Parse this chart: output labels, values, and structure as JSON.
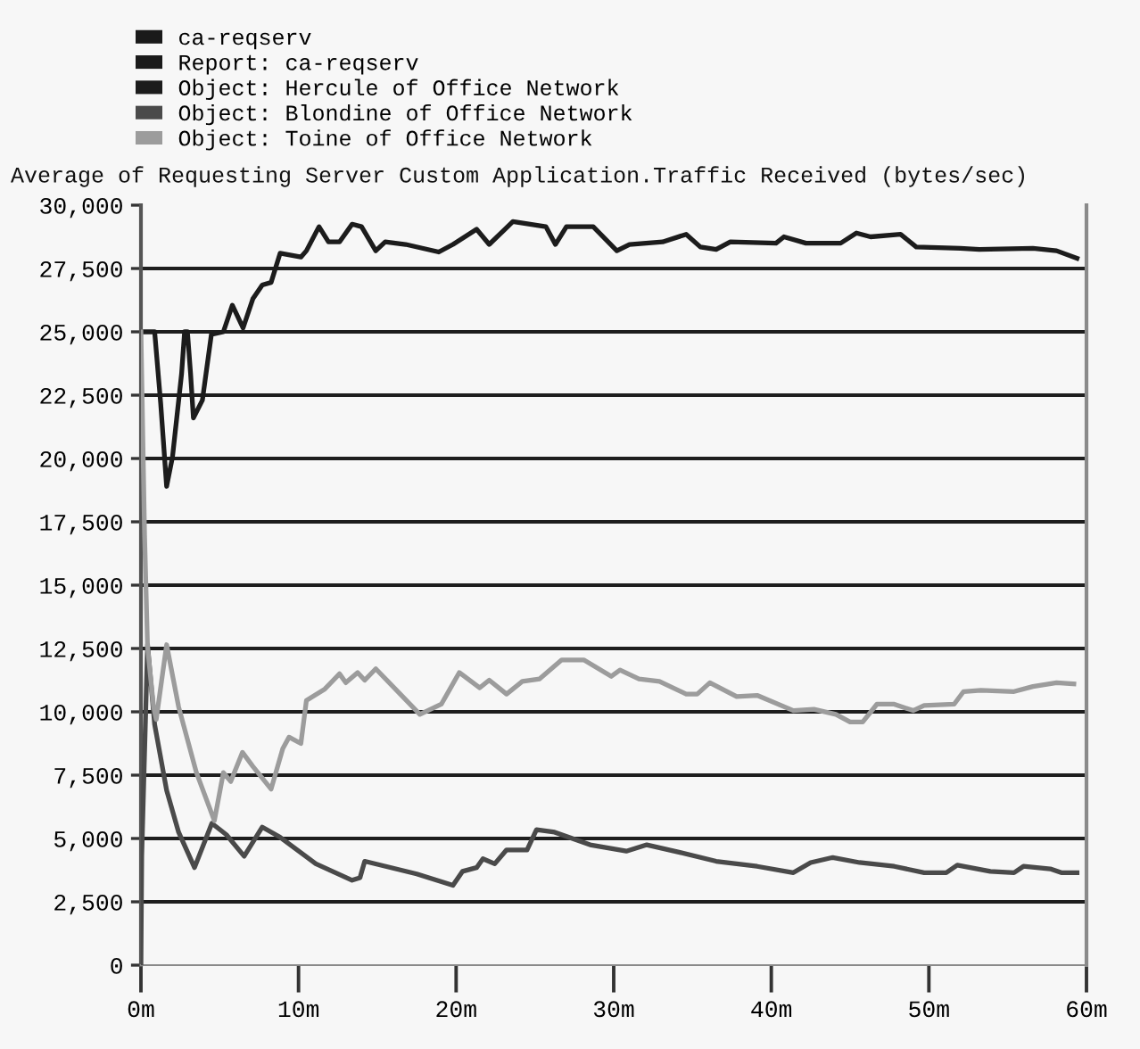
{
  "chart_data": {
    "type": "line",
    "title": "Average of Requesting Server Custom Application.Traffic Received (bytes/sec)",
    "legend_title": "ca-reqserv\nReport: ca-reqserv",
    "legend": "top left",
    "grid": "y",
    "xlim": [
      0,
      60
    ],
    "xticks": [
      {
        "value": 0,
        "label": "0m"
      },
      {
        "value": 10,
        "label": "10m"
      },
      {
        "value": 20,
        "label": "20m"
      },
      {
        "value": 30,
        "label": "30m"
      },
      {
        "value": 40,
        "label": "40m"
      },
      {
        "value": 50,
        "label": "50m"
      },
      {
        "value": 60,
        "label": "60m"
      }
    ],
    "ylim": [
      0,
      30000
    ],
    "yticks": [
      0,
      {
        "value": 2500,
        "label": "2,500"
      },
      {
        "value": 5000,
        "label": "5,000"
      },
      {
        "value": 7500,
        "label": "7,500"
      },
      {
        "value": 10000,
        "label": "10,000"
      },
      {
        "value": 12500,
        "label": "12,500"
      },
      {
        "value": 15000,
        "label": "15,000"
      },
      {
        "value": 17500,
        "label": "17,500"
      },
      {
        "value": 20000,
        "label": "20,000"
      },
      {
        "value": 22500,
        "label": "22,500"
      },
      {
        "value": 25000,
        "label": "25,000"
      },
      {
        "value": 27500,
        "label": "27,500"
      },
      {
        "value": 30000,
        "label": "30,000"
      }
    ],
    "series": [
      {
        "name": "Object: Hercule of Office Network",
        "color": "#1c1c1c",
        "x": [
          0,
          0.87,
          1.25,
          1.63,
          2.0,
          2.58,
          2.77,
          2.95,
          3.15,
          3.33,
          3.9,
          4.47,
          5.23,
          5.8,
          6.48,
          7.1,
          7.7,
          8.26,
          8.83,
          10.15,
          10.5,
          11.3,
          11.9,
          12.6,
          13.4,
          14.0,
          14.9,
          15.5,
          16.8,
          18.9,
          19.8,
          21.3,
          22.1,
          23.6,
          25.7,
          26.3,
          27.0,
          28.7,
          30.2,
          31.0,
          33.1,
          34.6,
          35.5,
          36.5,
          37.4,
          40.3,
          40.8,
          42.2,
          44.4,
          45.4,
          46.3,
          48.2,
          49.2,
          52.0,
          53.2,
          56.6,
          58.1,
          59.4
        ],
        "values": [
          25000,
          25000,
          22200,
          18900,
          20050,
          23350,
          25000,
          25000,
          23350,
          21600,
          22300,
          24900,
          25000,
          26050,
          25150,
          26300,
          26850,
          26950,
          28100,
          27950,
          28200,
          29150,
          28550,
          28550,
          29250,
          29150,
          28200,
          28550,
          28450,
          28150,
          28450,
          29050,
          28450,
          29350,
          29150,
          28450,
          29150,
          29150,
          28200,
          28450,
          28550,
          28850,
          28350,
          28250,
          28550,
          28500,
          28750,
          28500,
          28500,
          28900,
          28750,
          28850,
          28350,
          28300,
          28250,
          28300,
          28200,
          27900
        ]
      },
      {
        "name": "Object: Blondine of Office Network",
        "color": "#4a4a4a",
        "x": [
          0,
          0.05,
          0.42,
          0.87,
          1.63,
          2.39,
          3.4,
          4.5,
          5.42,
          6.55,
          7.7,
          8.83,
          11.1,
          13.4,
          13.9,
          14.2,
          17.5,
          19.8,
          20.4,
          21.3,
          21.7,
          22.45,
          23.2,
          24.5,
          25.1,
          26.25,
          28.5,
          30.8,
          32.1,
          34.2,
          36.5,
          39.1,
          41.4,
          42.5,
          43.9,
          45.6,
          47.8,
          49.7,
          51.1,
          51.8,
          53.9,
          55.4,
          56.0,
          57.7,
          58.4,
          59.4
        ],
        "values": [
          0,
          4300,
          12650,
          9500,
          6900,
          5250,
          3850,
          5600,
          5150,
          4300,
          5450,
          5050,
          4000,
          3350,
          3450,
          4100,
          3600,
          3150,
          3700,
          3850,
          4200,
          4000,
          4550,
          4550,
          5350,
          5250,
          4750,
          4500,
          4750,
          4450,
          4100,
          3900,
          3650,
          4050,
          4250,
          4050,
          3900,
          3650,
          3650,
          3950,
          3700,
          3650,
          3900,
          3800,
          3650,
          3650
        ]
      },
      {
        "name": "Object: Toine of Office Network",
        "color": "#9c9c9c",
        "x": [
          0,
          0.23,
          0.42,
          0.8,
          0.97,
          1.63,
          2.39,
          3.52,
          4.66,
          5.23,
          5.7,
          6.44,
          7.1,
          8.26,
          9.0,
          9.4,
          10.15,
          10.5,
          11.67,
          12.6,
          13.0,
          13.75,
          14.2,
          14.9,
          17.7,
          19.06,
          20.2,
          21.5,
          22.1,
          23.2,
          24.2,
          25.3,
          26.7,
          28.1,
          29.85,
          30.4,
          31.6,
          32.9,
          34.6,
          35.3,
          36.1,
          37.8,
          39.1,
          41.4,
          42.7,
          44.1,
          45.0,
          45.8,
          46.7,
          47.8,
          49.0,
          49.7,
          51.6,
          52.2,
          53.3,
          55.4,
          56.6,
          58.1,
          59.2
        ],
        "values": [
          25000,
          17000,
          12550,
          10200,
          9700,
          12650,
          10200,
          7600,
          5700,
          7600,
          7250,
          8400,
          7850,
          6950,
          8550,
          9000,
          8750,
          10450,
          10900,
          11500,
          11150,
          11550,
          11250,
          11700,
          9900,
          10300,
          11550,
          10950,
          11250,
          10700,
          11200,
          11300,
          12050,
          12050,
          11400,
          11650,
          11300,
          11200,
          10700,
          10700,
          11150,
          10600,
          10650,
          10050,
          10100,
          9900,
          9600,
          9600,
          10300,
          10300,
          10050,
          10250,
          10300,
          10800,
          10850,
          10800,
          11000,
          11150,
          11100
        ]
      }
    ]
  }
}
